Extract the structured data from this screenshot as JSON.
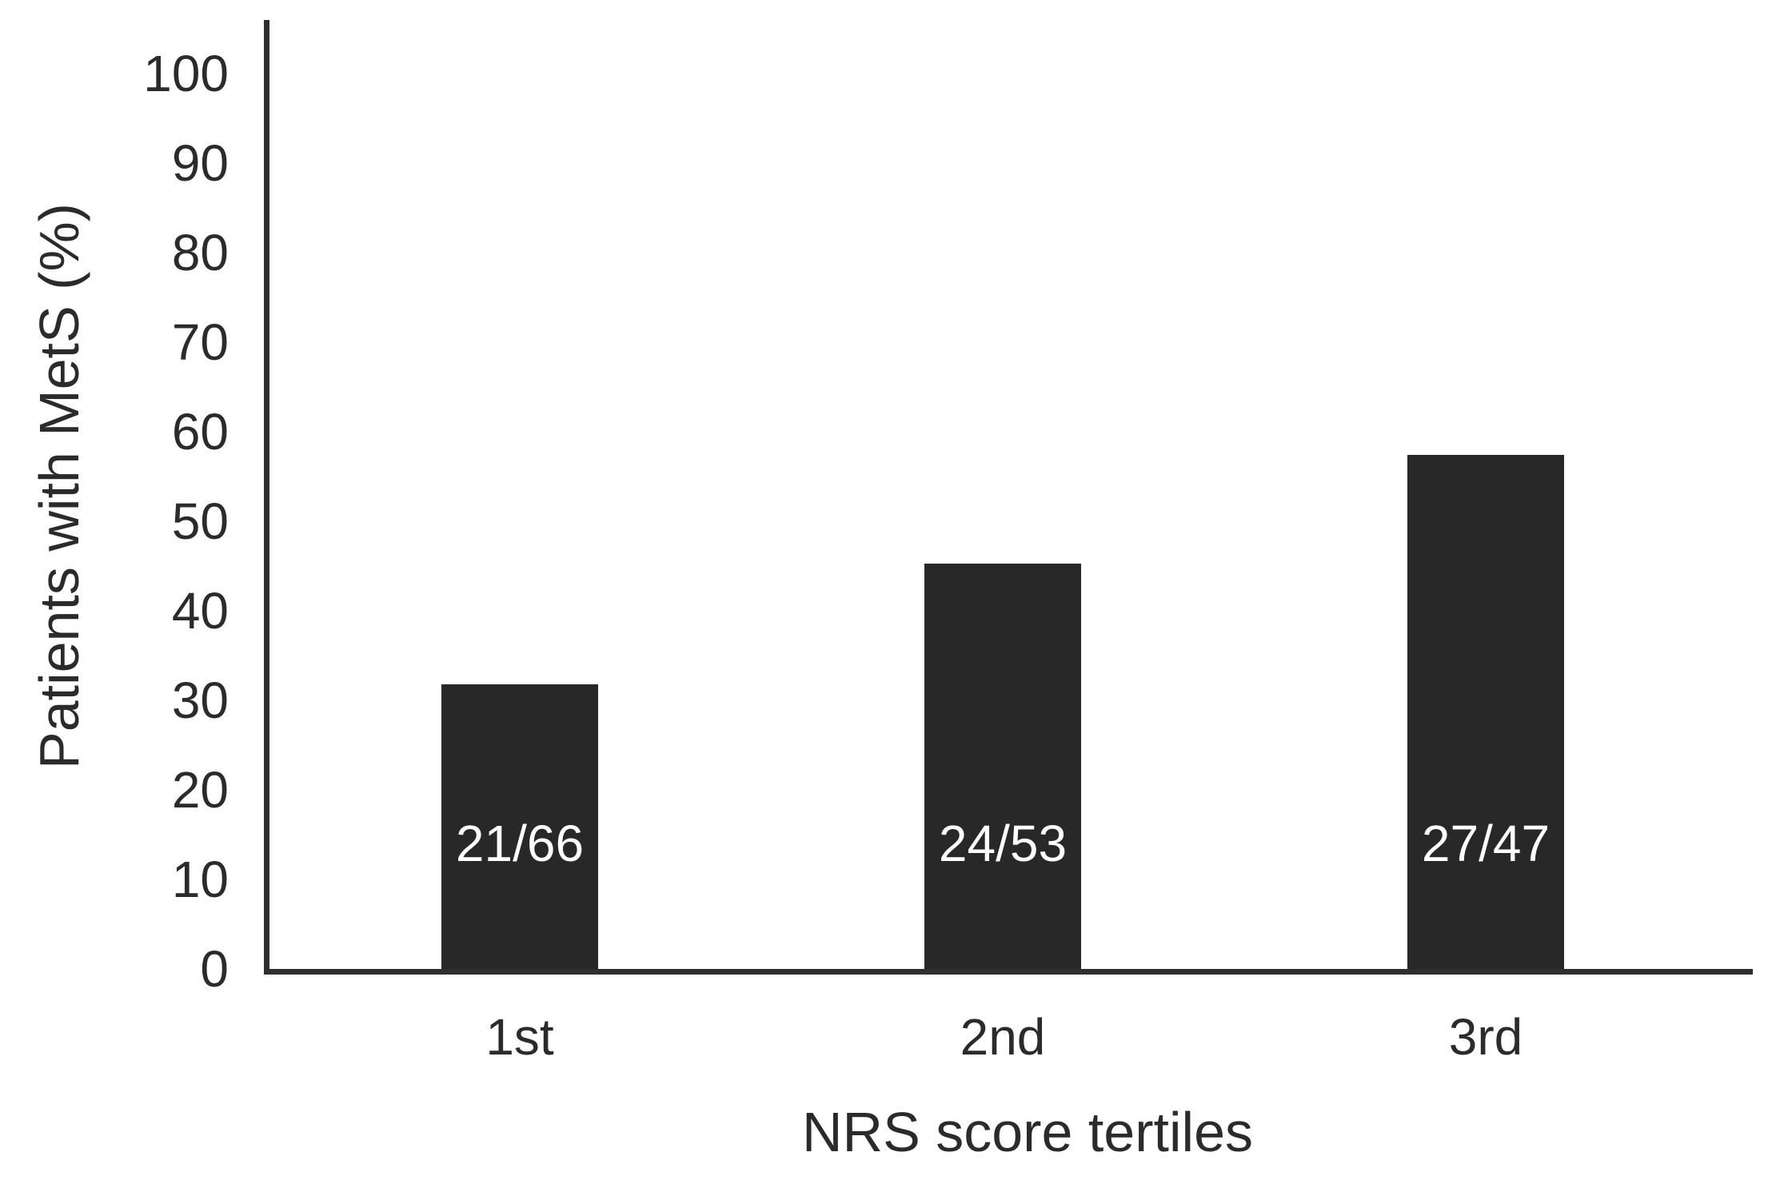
{
  "chart_data": {
    "type": "bar",
    "title": "",
    "xlabel": "NRS score tertiles",
    "ylabel": "Patients with MetS (%)",
    "categories": [
      "1st",
      "2nd",
      "3rd"
    ],
    "values": [
      31.8,
      45.3,
      57.4
    ],
    "bar_labels": [
      "21/66",
      "24/53",
      "27/47"
    ],
    "ylim": [
      0,
      100
    ],
    "yticks": [
      0,
      10,
      20,
      30,
      40,
      50,
      60,
      70,
      80,
      90,
      100
    ],
    "grid": false,
    "legend": null,
    "colors": {
      "bar": "#282828",
      "bar_label": "#ffffff",
      "axis": "#2f2f2f",
      "text": "#2b2b2b",
      "background": "#ffffff"
    }
  }
}
